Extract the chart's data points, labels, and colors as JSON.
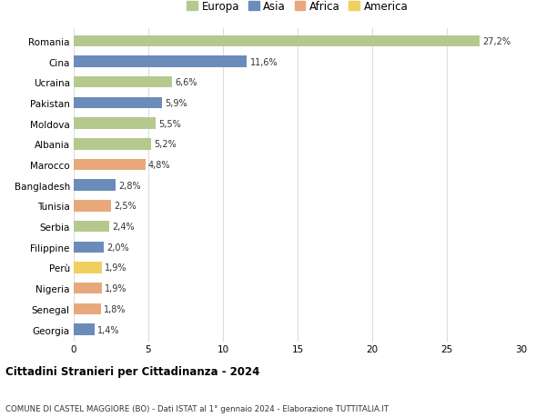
{
  "countries": [
    "Romania",
    "Cina",
    "Ucraina",
    "Pakistan",
    "Moldova",
    "Albania",
    "Marocco",
    "Bangladesh",
    "Tunisia",
    "Serbia",
    "Filippine",
    "Perù",
    "Nigeria",
    "Senegal",
    "Georgia"
  ],
  "values": [
    27.2,
    11.6,
    6.6,
    5.9,
    5.5,
    5.2,
    4.8,
    2.8,
    2.5,
    2.4,
    2.0,
    1.9,
    1.9,
    1.8,
    1.4
  ],
  "labels": [
    "27,2%",
    "11,6%",
    "6,6%",
    "5,9%",
    "5,5%",
    "5,2%",
    "4,8%",
    "2,8%",
    "2,5%",
    "2,4%",
    "2,0%",
    "1,9%",
    "1,9%",
    "1,8%",
    "1,4%"
  ],
  "continents": [
    "Europa",
    "Asia",
    "Europa",
    "Asia",
    "Europa",
    "Europa",
    "Africa",
    "Asia",
    "Africa",
    "Europa",
    "Asia",
    "America",
    "Africa",
    "Africa",
    "Asia"
  ],
  "colors": {
    "Europa": "#b5c98e",
    "Asia": "#6b8cba",
    "Africa": "#e8a87c",
    "America": "#f0d060"
  },
  "legend_order": [
    "Europa",
    "Asia",
    "Africa",
    "America"
  ],
  "title": "Cittadini Stranieri per Cittadinanza - 2024",
  "subtitle": "COMUNE DI CASTEL MAGGIORE (BO) - Dati ISTAT al 1° gennaio 2024 - Elaborazione TUTTITALIA.IT",
  "xlim": [
    0,
    30
  ],
  "xticks": [
    0,
    5,
    10,
    15,
    20,
    25,
    30
  ],
  "background_color": "#ffffff",
  "grid_color": "#dddddd",
  "bar_height": 0.55
}
